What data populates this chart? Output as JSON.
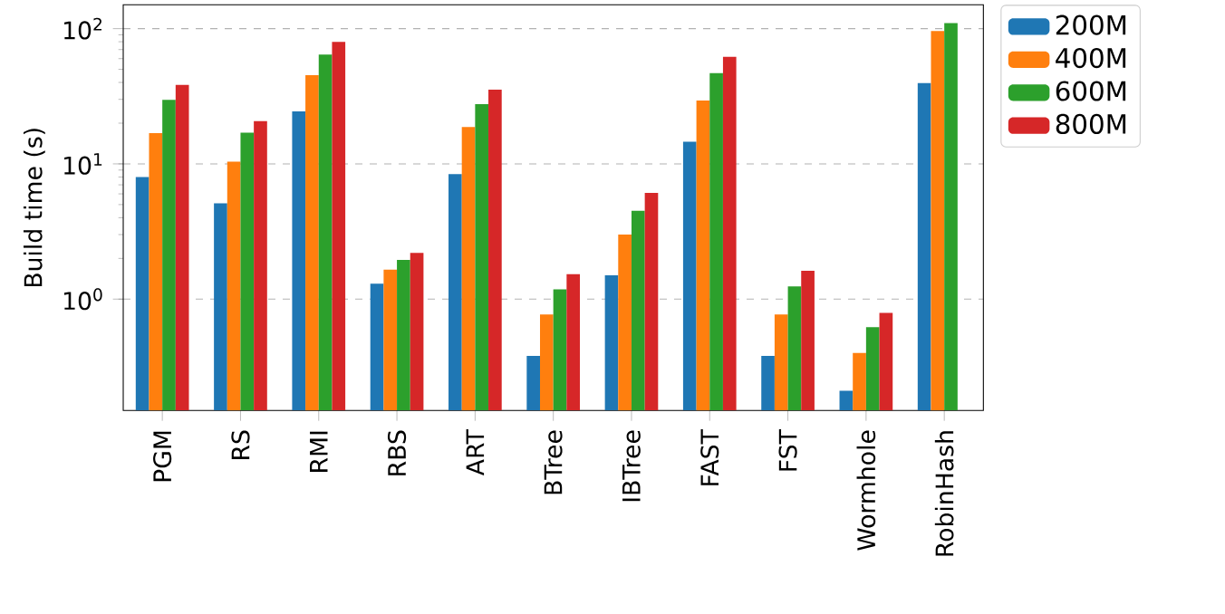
{
  "chart_data": {
    "type": "bar",
    "ylabel": "Build time (s)",
    "log": "y",
    "grid": "y",
    "legend": "right",
    "categories": [
      "PGM",
      "RS",
      "RMI",
      "RBS",
      "ART",
      "BTree",
      "IBTree",
      "FAST",
      "FST",
      "Wormhole",
      "RobinHash"
    ],
    "ylim": [
      0.15,
      150
    ],
    "yticks": [
      {
        "value": 1,
        "label": "10$^{0}$"
      },
      {
        "value": 10,
        "label": "10$^{1}$"
      },
      {
        "value": 100,
        "label": "10$^{2}$"
      }
    ],
    "series": [
      {
        "name": "200M",
        "color": "#1f77b4",
        "values": [
          8.0,
          5.1,
          24.4,
          1.3,
          8.4,
          0.38,
          1.5,
          14.6,
          0.38,
          0.21,
          39.6
        ]
      },
      {
        "name": "400M",
        "color": "#ff7f0e",
        "values": [
          16.9,
          10.4,
          45.3,
          1.65,
          18.7,
          0.77,
          3.0,
          29.4,
          0.77,
          0.4,
          96
        ]
      },
      {
        "name": "600M",
        "color": "#2ca02c",
        "values": [
          29.7,
          17.0,
          64.3,
          1.95,
          27.6,
          1.18,
          4.5,
          46.8,
          1.24,
          0.62,
          110
        ]
      },
      {
        "name": "800M",
        "color": "#d62728",
        "values": [
          38.4,
          20.7,
          79.8,
          2.2,
          35.4,
          1.53,
          6.1,
          61.8,
          1.62,
          0.79,
          null
        ]
      }
    ]
  }
}
